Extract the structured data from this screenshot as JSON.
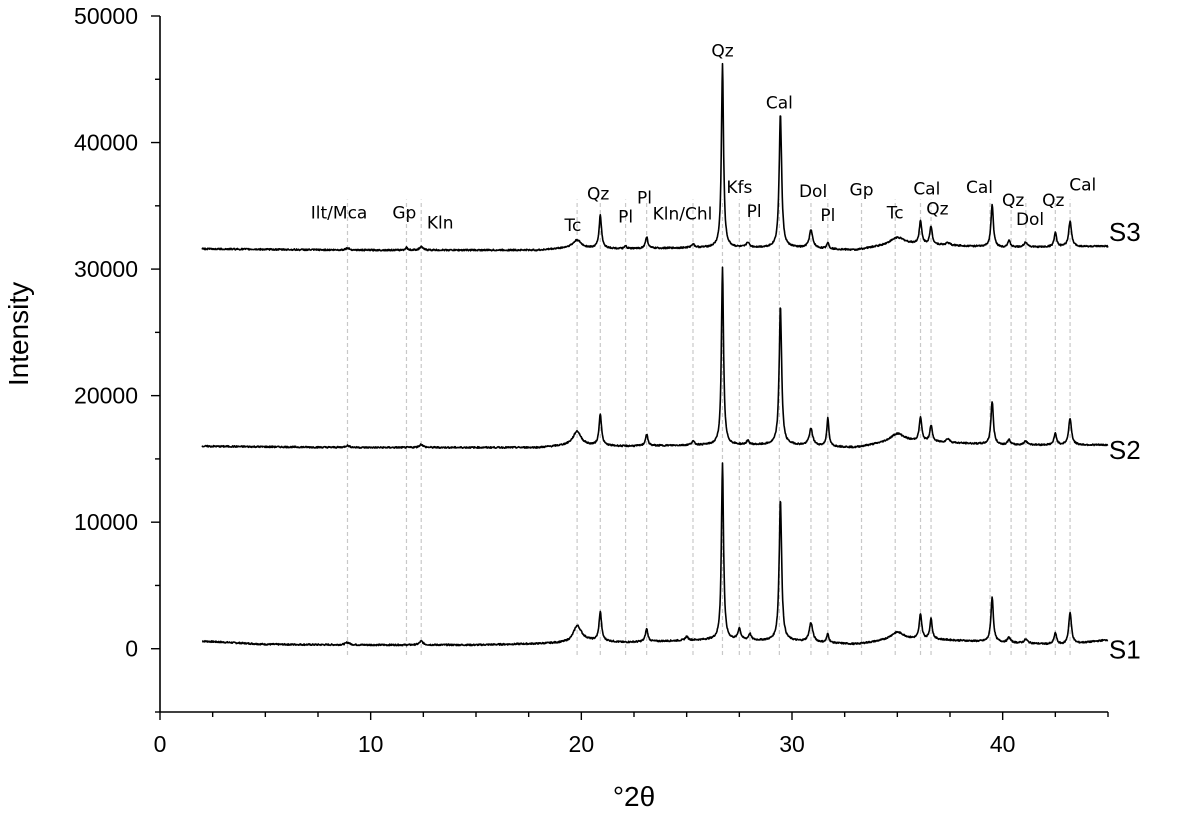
{
  "chart_data": {
    "type": "line",
    "title": "",
    "xlabel": "°2θ",
    "ylabel": "Intensity",
    "xlim": [
      0,
      45
    ],
    "ylim": [
      -5000,
      50000
    ],
    "x_ticks": [
      0,
      10,
      20,
      30,
      40
    ],
    "y_ticks": [
      0,
      10000,
      20000,
      30000,
      40000,
      50000
    ],
    "x_tick_labels": [
      "0",
      "10",
      "20",
      "30",
      "40"
    ],
    "y_tick_labels": [
      "0",
      "10000",
      "20000",
      "30000",
      "40000",
      "50000"
    ],
    "grid": false,
    "legend": "none",
    "x_range": [
      2,
      45
    ],
    "series": [
      {
        "name": "S1",
        "baseline": 300,
        "background": [
          [
            2,
            600
          ],
          [
            5,
            350
          ],
          [
            9,
            300
          ],
          [
            15,
            300
          ],
          [
            18,
            400
          ],
          [
            19.5,
            500
          ],
          [
            20,
            700
          ],
          [
            22,
            500
          ],
          [
            26,
            700
          ],
          [
            30,
            600
          ],
          [
            33,
            350
          ],
          [
            35,
            700
          ],
          [
            37,
            700
          ],
          [
            40,
            500
          ],
          [
            43,
            300
          ],
          [
            45,
            700
          ]
        ],
        "peaks": [
          [
            8.9,
            200,
            0.12
          ],
          [
            12.4,
            300,
            0.1
          ],
          [
            19.8,
            1200,
            0.22
          ],
          [
            20.9,
            2300,
            0.07
          ],
          [
            23.1,
            1000,
            0.07
          ],
          [
            25.0,
            300,
            0.08
          ],
          [
            26.7,
            14000,
            0.06
          ],
          [
            27.5,
            900,
            0.08
          ],
          [
            28.0,
            500,
            0.07
          ],
          [
            29.45,
            11200,
            0.07
          ],
          [
            30.9,
            1500,
            0.1
          ],
          [
            31.7,
            700,
            0.06
          ],
          [
            35.0,
            600,
            0.4
          ],
          [
            36.1,
            2000,
            0.07
          ],
          [
            36.6,
            1600,
            0.07
          ],
          [
            39.5,
            3500,
            0.07
          ],
          [
            40.3,
            400,
            0.08
          ],
          [
            41.1,
            300,
            0.1
          ],
          [
            42.5,
            900,
            0.07
          ],
          [
            43.2,
            2500,
            0.08
          ]
        ],
        "label_x": 44.0,
        "label_y": 0
      },
      {
        "name": "S2",
        "baseline": 15900,
        "background": [
          [
            2,
            16000
          ],
          [
            9,
            15900
          ],
          [
            18,
            15900
          ],
          [
            19.5,
            16100
          ],
          [
            22,
            16000
          ],
          [
            26,
            16100
          ],
          [
            30,
            16100
          ],
          [
            33,
            15900
          ],
          [
            35,
            16400
          ],
          [
            37,
            16300
          ],
          [
            40,
            16100
          ],
          [
            45,
            16100
          ]
        ],
        "peaks": [
          [
            8.9,
            150,
            0.12
          ],
          [
            12.4,
            250,
            0.1
          ],
          [
            19.8,
            1100,
            0.22
          ],
          [
            20.9,
            2500,
            0.07
          ],
          [
            23.1,
            900,
            0.07
          ],
          [
            25.3,
            300,
            0.08
          ],
          [
            26.7,
            14000,
            0.06
          ],
          [
            27.9,
            300,
            0.08
          ],
          [
            29.45,
            11000,
            0.07
          ],
          [
            30.9,
            1300,
            0.1
          ],
          [
            31.7,
            2200,
            0.06
          ],
          [
            35.0,
            600,
            0.4
          ],
          [
            36.1,
            1900,
            0.07
          ],
          [
            36.6,
            1300,
            0.07
          ],
          [
            37.4,
            300,
            0.1
          ],
          [
            39.5,
            3400,
            0.07
          ],
          [
            40.3,
            400,
            0.08
          ],
          [
            41.1,
            300,
            0.1
          ],
          [
            42.5,
            900,
            0.07
          ],
          [
            43.2,
            2100,
            0.08
          ]
        ],
        "label_x": 44.0,
        "label_y": 15800
      },
      {
        "name": "S3",
        "baseline": 31500,
        "background": [
          [
            2,
            31600
          ],
          [
            9,
            31500
          ],
          [
            18,
            31500
          ],
          [
            19.5,
            31700
          ],
          [
            22,
            31600
          ],
          [
            26,
            31700
          ],
          [
            30,
            31700
          ],
          [
            33,
            31500
          ],
          [
            35,
            32000
          ],
          [
            37,
            31900
          ],
          [
            40,
            31700
          ],
          [
            45,
            31800
          ]
        ],
        "peaks": [
          [
            8.9,
            150,
            0.12
          ],
          [
            11.7,
            200,
            0.06
          ],
          [
            12.4,
            250,
            0.1
          ],
          [
            19.8,
            600,
            0.22
          ],
          [
            20.9,
            2600,
            0.07
          ],
          [
            22.1,
            200,
            0.06
          ],
          [
            23.1,
            900,
            0.07
          ],
          [
            25.3,
            300,
            0.08
          ],
          [
            26.7,
            14500,
            0.06
          ],
          [
            27.9,
            400,
            0.08
          ],
          [
            29.45,
            10600,
            0.07
          ],
          [
            30.9,
            1400,
            0.1
          ],
          [
            31.7,
            500,
            0.06
          ],
          [
            35.0,
            500,
            0.4
          ],
          [
            36.1,
            1800,
            0.07
          ],
          [
            36.6,
            1400,
            0.07
          ],
          [
            37.4,
            200,
            0.1
          ],
          [
            39.5,
            3300,
            0.07
          ],
          [
            40.3,
            500,
            0.08
          ],
          [
            41.1,
            400,
            0.1
          ],
          [
            42.5,
            1100,
            0.07
          ],
          [
            43.2,
            2000,
            0.08
          ]
        ],
        "label_x": 44.0,
        "label_y": 33000
      }
    ],
    "phase_lines": [
      8.9,
      11.7,
      12.4,
      19.8,
      20.9,
      22.1,
      23.1,
      25.3,
      26.7,
      27.5,
      28.0,
      29.4,
      30.9,
      31.7,
      33.3,
      34.9,
      36.1,
      36.6,
      39.4,
      40.4,
      41.1,
      42.5,
      43.2
    ],
    "annotations": [
      {
        "text": "Ilt/Mca",
        "x": 8.5,
        "y": 34000
      },
      {
        "text": "Gp",
        "x": 11.6,
        "y": 34000
      },
      {
        "text": "Kln",
        "x": 13.3,
        "y": 33200
      },
      {
        "text": "Tc",
        "x": 19.6,
        "y": 33000
      },
      {
        "text": "Qz",
        "x": 20.8,
        "y": 35500
      },
      {
        "text": "Pl",
        "x": 22.1,
        "y": 33700
      },
      {
        "text": "Pl",
        "x": 23.0,
        "y": 35200
      },
      {
        "text": "Kln/Chl",
        "x": 24.8,
        "y": 33900
      },
      {
        "text": "Qz",
        "x": 26.7,
        "y": 46800
      },
      {
        "text": "Kfs",
        "x": 27.5,
        "y": 36000
      },
      {
        "text": "Pl",
        "x": 28.2,
        "y": 34100
      },
      {
        "text": "Cal",
        "x": 29.4,
        "y": 42700
      },
      {
        "text": "Dol",
        "x": 31.0,
        "y": 35700
      },
      {
        "text": "Pl",
        "x": 31.7,
        "y": 33800
      },
      {
        "text": "Gp",
        "x": 33.3,
        "y": 35800
      },
      {
        "text": "Tc",
        "x": 34.9,
        "y": 34000
      },
      {
        "text": "Cal",
        "x": 36.4,
        "y": 35900
      },
      {
        "text": "Qz",
        "x": 36.9,
        "y": 34300
      },
      {
        "text": "Cal",
        "x": 38.9,
        "y": 36000
      },
      {
        "text": "Qz",
        "x": 40.5,
        "y": 35000
      },
      {
        "text": "Dol",
        "x": 41.3,
        "y": 33500
      },
      {
        "text": "Qz",
        "x": 42.4,
        "y": 35000
      },
      {
        "text": "Cal",
        "x": 43.8,
        "y": 36200
      }
    ]
  }
}
